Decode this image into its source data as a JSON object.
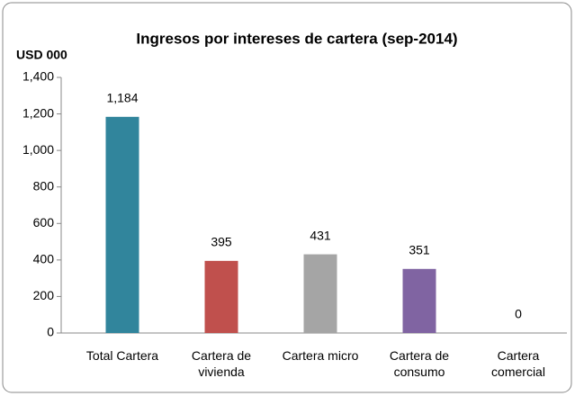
{
  "chart_data": {
    "type": "bar",
    "title": "Ingresos por intereses de cartera  (sep-2014)",
    "y_label": "USD 000",
    "categories": [
      "Total Cartera",
      "Cartera de vivienda",
      "Cartera micro",
      "Cartera de consumo",
      "Cartera comercial"
    ],
    "values": [
      1184,
      395,
      431,
      351,
      0
    ],
    "value_labels": [
      "1,184",
      "395",
      "431",
      "351",
      "0"
    ],
    "colors": [
      "#31859c",
      "#c0504d",
      "#a5a5a5",
      "#8064a2",
      "#4bacc6"
    ],
    "ylim": [
      0,
      1400
    ],
    "yticks": [
      0,
      200,
      400,
      600,
      800,
      {
        "value": 1000,
        "label": "1,000"
      },
      {
        "value": 1200,
        "label": "1,200"
      },
      {
        "value": 1400,
        "label": "1,400"
      }
    ],
    "grid": false
  }
}
